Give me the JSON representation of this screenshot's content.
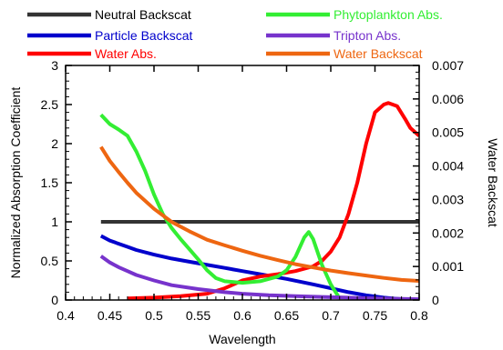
{
  "chart_data": {
    "type": "line",
    "xlabel": "Wavelength",
    "ylabel": "Normalized Absorption Coefficient",
    "y2label": "Water Backscat",
    "xlim": [
      0.4,
      0.8
    ],
    "ylim": [
      0,
      3
    ],
    "y2lim": [
      0,
      0.007
    ],
    "xticks": [
      "0.4",
      "0.45",
      "0.5",
      "0.55",
      "0.6",
      "0.65",
      "0.7",
      "0.75",
      "0.8"
    ],
    "yticks": [
      "0",
      "0.5",
      "1",
      "1.5",
      "2",
      "2.5",
      "3"
    ],
    "y2ticks": [
      "0",
      "0.001",
      "0.002",
      "0.003",
      "0.004",
      "0.005",
      "0.006",
      "0.007"
    ],
    "grid": false,
    "legend_position": "top",
    "series": [
      {
        "name": "Neutral Backscat",
        "color": "#333333",
        "axis": "left",
        "points": [
          [
            0.44,
            1.0
          ],
          [
            0.8,
            1.0
          ]
        ]
      },
      {
        "name": "Particle Backscat",
        "color": "#0000cc",
        "axis": "left",
        "points": [
          [
            0.44,
            0.82
          ],
          [
            0.45,
            0.76
          ],
          [
            0.46,
            0.72
          ],
          [
            0.47,
            0.68
          ],
          [
            0.48,
            0.64
          ],
          [
            0.5,
            0.58
          ],
          [
            0.52,
            0.53
          ],
          [
            0.55,
            0.47
          ],
          [
            0.58,
            0.41
          ],
          [
            0.6,
            0.37
          ],
          [
            0.62,
            0.33
          ],
          [
            0.65,
            0.27
          ],
          [
            0.68,
            0.2
          ],
          [
            0.7,
            0.15
          ],
          [
            0.72,
            0.1
          ],
          [
            0.74,
            0.06
          ],
          [
            0.76,
            0.03
          ],
          [
            0.78,
            0.01
          ],
          [
            0.8,
            0.0
          ]
        ]
      },
      {
        "name": "Water Abs.",
        "color": "#ff0000",
        "axis": "left",
        "points": [
          [
            0.47,
            0.02
          ],
          [
            0.5,
            0.03
          ],
          [
            0.53,
            0.05
          ],
          [
            0.56,
            0.08
          ],
          [
            0.58,
            0.15
          ],
          [
            0.6,
            0.25
          ],
          [
            0.62,
            0.3
          ],
          [
            0.64,
            0.33
          ],
          [
            0.66,
            0.37
          ],
          [
            0.68,
            0.43
          ],
          [
            0.69,
            0.5
          ],
          [
            0.7,
            0.62
          ],
          [
            0.71,
            0.8
          ],
          [
            0.715,
            0.95
          ],
          [
            0.72,
            1.1
          ],
          [
            0.73,
            1.5
          ],
          [
            0.74,
            2.0
          ],
          [
            0.75,
            2.4
          ],
          [
            0.76,
            2.5
          ],
          [
            0.765,
            2.52
          ],
          [
            0.775,
            2.48
          ],
          [
            0.785,
            2.3
          ],
          [
            0.79,
            2.2
          ],
          [
            0.8,
            2.1
          ]
        ]
      },
      {
        "name": "Phytoplankton Abs.",
        "color": "#33ee33",
        "axis": "left",
        "points": [
          [
            0.44,
            2.37
          ],
          [
            0.45,
            2.25
          ],
          [
            0.46,
            2.18
          ],
          [
            0.47,
            2.1
          ],
          [
            0.48,
            1.9
          ],
          [
            0.49,
            1.65
          ],
          [
            0.5,
            1.35
          ],
          [
            0.51,
            1.1
          ],
          [
            0.52,
            0.92
          ],
          [
            0.53,
            0.78
          ],
          [
            0.54,
            0.65
          ],
          [
            0.55,
            0.52
          ],
          [
            0.56,
            0.38
          ],
          [
            0.57,
            0.28
          ],
          [
            0.58,
            0.24
          ],
          [
            0.6,
            0.22
          ],
          [
            0.62,
            0.24
          ],
          [
            0.64,
            0.3
          ],
          [
            0.65,
            0.38
          ],
          [
            0.66,
            0.55
          ],
          [
            0.67,
            0.8
          ],
          [
            0.675,
            0.87
          ],
          [
            0.68,
            0.78
          ],
          [
            0.69,
            0.45
          ],
          [
            0.7,
            0.2
          ],
          [
            0.71,
            0.02
          ]
        ]
      },
      {
        "name": "Tripton Abs.",
        "color": "#7733cc",
        "axis": "left",
        "points": [
          [
            0.44,
            0.56
          ],
          [
            0.45,
            0.48
          ],
          [
            0.46,
            0.42
          ],
          [
            0.47,
            0.37
          ],
          [
            0.48,
            0.32
          ],
          [
            0.5,
            0.25
          ],
          [
            0.52,
            0.19
          ],
          [
            0.55,
            0.14
          ],
          [
            0.58,
            0.1
          ],
          [
            0.6,
            0.08
          ],
          [
            0.63,
            0.06
          ],
          [
            0.66,
            0.05
          ],
          [
            0.69,
            0.04
          ],
          [
            0.72,
            0.03
          ],
          [
            0.75,
            0.02
          ],
          [
            0.78,
            0.015
          ],
          [
            0.8,
            0.01
          ]
        ]
      },
      {
        "name": "Water Backscat",
        "color": "#ee6611",
        "axis": "right",
        "points": [
          [
            0.44,
            0.00457
          ],
          [
            0.45,
            0.00415
          ],
          [
            0.46,
            0.00382
          ],
          [
            0.47,
            0.0035
          ],
          [
            0.48,
            0.0032
          ],
          [
            0.5,
            0.00272
          ],
          [
            0.52,
            0.00233
          ],
          [
            0.54,
            0.00205
          ],
          [
            0.56,
            0.0018
          ],
          [
            0.58,
            0.00163
          ],
          [
            0.6,
            0.00147
          ],
          [
            0.62,
            0.00132
          ],
          [
            0.64,
            0.00119
          ],
          [
            0.66,
            0.00107
          ],
          [
            0.68,
            0.00097
          ],
          [
            0.7,
            0.00088
          ],
          [
            0.72,
            0.0008
          ],
          [
            0.74,
            0.00073
          ],
          [
            0.76,
            0.00066
          ],
          [
            0.78,
            0.0006
          ],
          [
            0.8,
            0.00057
          ]
        ]
      }
    ]
  }
}
